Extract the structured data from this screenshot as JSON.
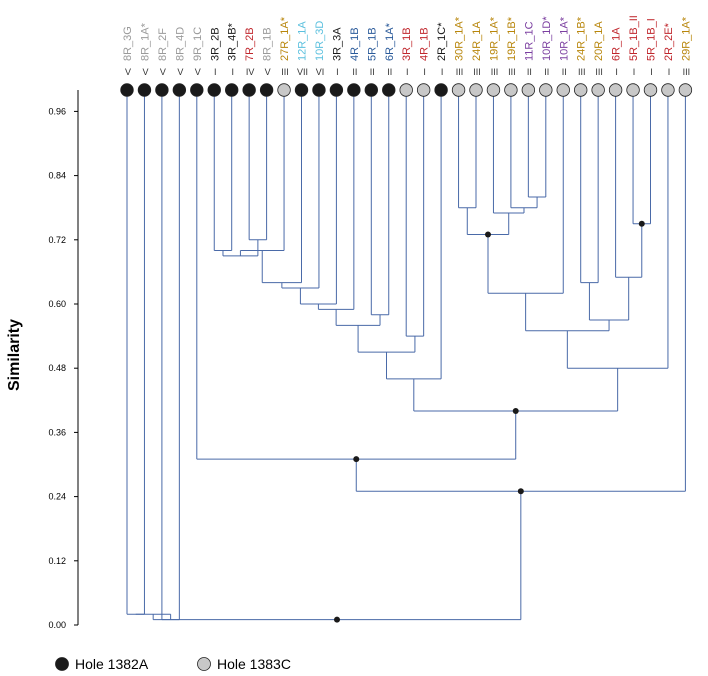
{
  "chart_data": {
    "type": "dendrogram",
    "ylabel": "Similarity",
    "ylim": [
      0,
      1
    ],
    "yticks": [
      "0.00",
      "0.12",
      "0.24",
      "0.36",
      "0.48",
      "0.60",
      "0.72",
      "0.84",
      "0.96"
    ],
    "leaves": [
      {
        "label": "8R_3G",
        "group": "V",
        "hole": "1382A",
        "color": "#9a9a9a"
      },
      {
        "label": "8R_1A*",
        "group": "V",
        "hole": "1382A",
        "color": "#9a9a9a"
      },
      {
        "label": "8R_2F",
        "group": "V",
        "hole": "1382A",
        "color": "#9a9a9a"
      },
      {
        "label": "8R_4D",
        "group": "V",
        "hole": "1382A",
        "color": "#9a9a9a"
      },
      {
        "label": "9R_1C",
        "group": "V",
        "hole": "1382A",
        "color": "#9a9a9a"
      },
      {
        "label": "3R_2B",
        "group": "I",
        "hole": "1382A",
        "color": "#1a1a1a"
      },
      {
        "label": "3R_4B*",
        "group": "I",
        "hole": "1382A",
        "color": "#1a1a1a"
      },
      {
        "label": "7R_2B",
        "group": "IV",
        "hole": "1382A",
        "color": "#c0272d"
      },
      {
        "label": "8R_1B",
        "group": "V",
        "hole": "1382A",
        "color": "#9a9a9a"
      },
      {
        "label": "27R_1A*",
        "group": "III",
        "hole": "1383C",
        "color": "#b8860b"
      },
      {
        "label": "12R_1A",
        "group": "VII",
        "hole": "1382A",
        "color": "#5bc0de"
      },
      {
        "label": "10R_3D",
        "group": "VI",
        "hole": "1382A",
        "color": "#5bc0de"
      },
      {
        "label": "3R_3A",
        "group": "I",
        "hole": "1382A",
        "color": "#1a1a1a"
      },
      {
        "label": "4R_1B",
        "group": "II",
        "hole": "1382A",
        "color": "#2a5a9a"
      },
      {
        "label": "5R_1B",
        "group": "II",
        "hole": "1382A",
        "color": "#2a5a9a"
      },
      {
        "label": "6R_1A*",
        "group": "II",
        "hole": "1382A",
        "color": "#2a5a9a"
      },
      {
        "label": "3R_1B",
        "group": "I",
        "hole": "1383C",
        "color": "#c0272d"
      },
      {
        "label": "4R_1B",
        "group": "I",
        "hole": "1383C",
        "color": "#c0272d"
      },
      {
        "label": "2R_1C*",
        "group": "I",
        "hole": "1382A",
        "color": "#1a1a1a"
      },
      {
        "label": "30R_1A*",
        "group": "III",
        "hole": "1383C",
        "color": "#b8860b"
      },
      {
        "label": "24R_1A",
        "group": "III",
        "hole": "1383C",
        "color": "#b8860b"
      },
      {
        "label": "19R_1A*",
        "group": "III",
        "hole": "1383C",
        "color": "#b8860b"
      },
      {
        "label": "19R_1B*",
        "group": "III",
        "hole": "1383C",
        "color": "#b8860b"
      },
      {
        "label": "11R_1C",
        "group": "II",
        "hole": "1383C",
        "color": "#7b3fa0"
      },
      {
        "label": "10R_1D*",
        "group": "II",
        "hole": "1383C",
        "color": "#7b3fa0"
      },
      {
        "label": "10R_1A*",
        "group": "II",
        "hole": "1383C",
        "color": "#7b3fa0"
      },
      {
        "label": "24R_1B*",
        "group": "III",
        "hole": "1383C",
        "color": "#b8860b"
      },
      {
        "label": "20R_1A",
        "group": "III",
        "hole": "1383C",
        "color": "#b8860b"
      },
      {
        "label": "6R_1A",
        "group": "I",
        "hole": "1383C",
        "color": "#c0272d"
      },
      {
        "label": "5R_1B_II",
        "group": "I",
        "hole": "1383C",
        "color": "#c0272d"
      },
      {
        "label": "5R_1B_I",
        "group": "I",
        "hole": "1383C",
        "color": "#c0272d"
      },
      {
        "label": "2R_2E*",
        "group": "I",
        "hole": "1383C",
        "color": "#c0272d"
      },
      {
        "label": "29R_1A*",
        "group": "III",
        "hole": "1383C",
        "color": "#b8860b"
      }
    ],
    "merges": [
      {
        "id": "L1",
        "children": [
          5,
          6
        ],
        "sim": 0.7
      },
      {
        "id": "L2",
        "children": [
          7,
          8
        ],
        "sim": 0.72
      },
      {
        "id": "L3",
        "children": [
          "L1",
          "L2"
        ],
        "sim": 0.69
      },
      {
        "id": "L4",
        "children": [
          "L3",
          9
        ],
        "sim": 0.7
      },
      {
        "id": "L5",
        "children": [
          "L4",
          10
        ],
        "sim": 0.64
      },
      {
        "id": "L6",
        "children": [
          "L5",
          11
        ],
        "sim": 0.63
      },
      {
        "id": "L7",
        "children": [
          "L6",
          12
        ],
        "sim": 0.6
      },
      {
        "id": "L8",
        "children": [
          "L7",
          13
        ],
        "sim": 0.59
      },
      {
        "id": "L9",
        "children": [
          14,
          15
        ],
        "sim": 0.58
      },
      {
        "id": "L10",
        "children": [
          "L8",
          "L9"
        ],
        "sim": 0.56
      },
      {
        "id": "L11",
        "children": [
          16,
          17
        ],
        "sim": 0.54
      },
      {
        "id": "L12",
        "children": [
          "L10",
          "L11"
        ],
        "sim": 0.51
      },
      {
        "id": "L13",
        "children": [
          "L12",
          18
        ],
        "sim": 0.46
      },
      {
        "id": "R1",
        "children": [
          19,
          20
        ],
        "sim": 0.78
      },
      {
        "id": "R2",
        "children": [
          23,
          24
        ],
        "sim": 0.8
      },
      {
        "id": "R3",
        "children": [
          "R2",
          22
        ],
        "sim": 0.78
      },
      {
        "id": "R4",
        "children": [
          21,
          "R3"
        ],
        "sim": 0.77
      },
      {
        "id": "R5",
        "children": [
          "R1",
          "R4"
        ],
        "sim": 0.73
      },
      {
        "id": "R6",
        "children": [
          "R5",
          25
        ],
        "sim": 0.62
      },
      {
        "id": "R7",
        "children": [
          29,
          30
        ],
        "sim": 0.75
      },
      {
        "id": "R8",
        "children": [
          28,
          "R7"
        ],
        "sim": 0.65
      },
      {
        "id": "R9",
        "children": [
          26,
          27
        ],
        "sim": 0.64
      },
      {
        "id": "R10",
        "children": [
          "R9",
          "R8"
        ],
        "sim": 0.57
      },
      {
        "id": "R11",
        "children": [
          "R6",
          "R10"
        ],
        "sim": 0.55
      },
      {
        "id": "R12",
        "children": [
          "R11",
          31
        ],
        "sim": 0.48
      },
      {
        "id": "B1",
        "children": [
          "L13",
          "R12"
        ],
        "sim": 0.4
      },
      {
        "id": "B2",
        "children": [
          4,
          "B1"
        ],
        "sim": 0.31
      },
      {
        "id": "B3",
        "children": [
          "B2",
          32
        ],
        "sim": 0.25
      },
      {
        "id": "C1",
        "children": [
          2,
          3
        ],
        "sim": 0.01
      },
      {
        "id": "C2",
        "children": [
          0,
          1
        ],
        "sim": 0.02
      },
      {
        "id": "C3",
        "children": [
          "C2",
          "C1"
        ],
        "sim": 0.02
      },
      {
        "id": "ROOT",
        "children": [
          "C3",
          "B3"
        ],
        "sim": 0.01
      }
    ],
    "highlighted_nodes": [
      "R5",
      "R7",
      "B1",
      "B2",
      "B3",
      "ROOT"
    ],
    "legend": [
      {
        "label": "Hole 1382A",
        "color": "#1a1a1a"
      },
      {
        "label": "Hole 1383C",
        "color": "#c8c8c8"
      }
    ],
    "line_color": "#4a6aa8"
  }
}
